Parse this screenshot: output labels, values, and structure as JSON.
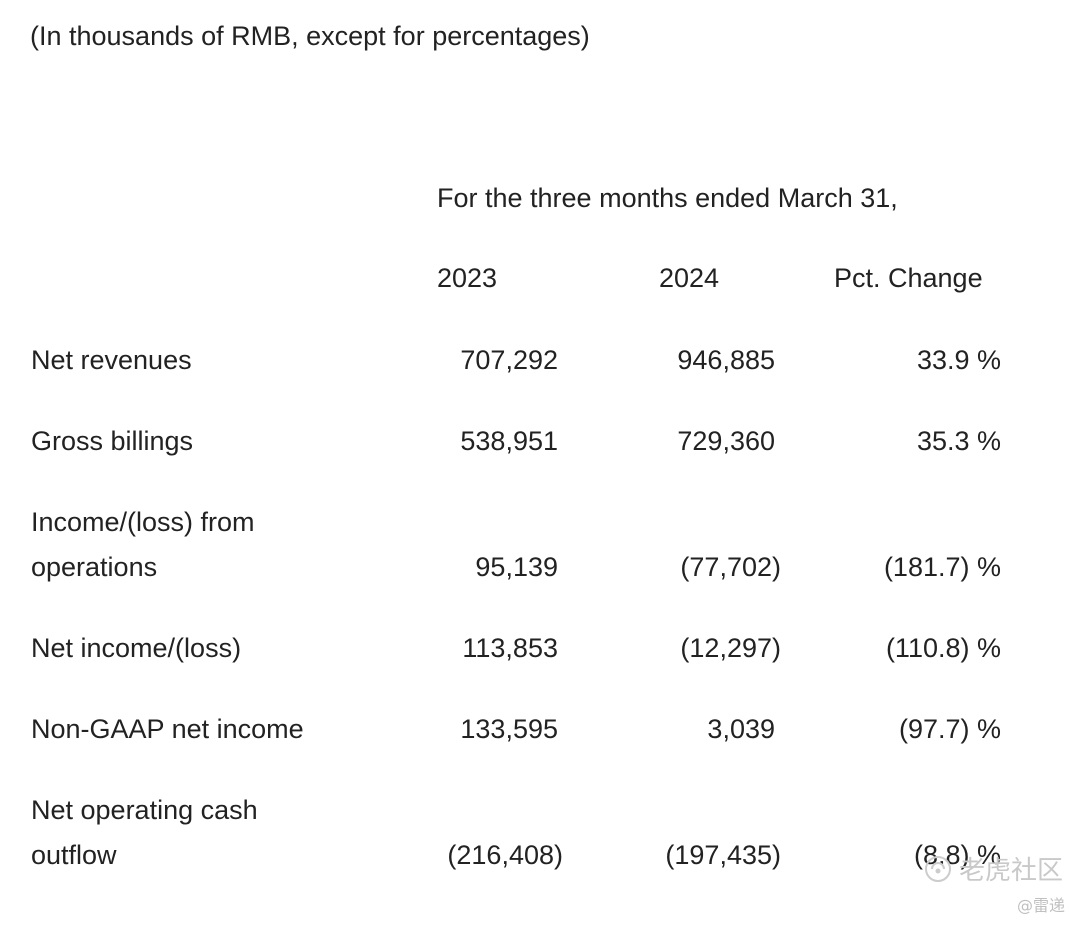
{
  "units_note": "(In thousands of RMB, except for percentages)",
  "period_header": "For the three months ended March 31,",
  "columns": {
    "y2023": "2023",
    "y2024": "2024",
    "pct": "Pct. Change"
  },
  "rows": [
    {
      "label": [
        "Net revenues"
      ],
      "y2023": "707,292",
      "y2024": "946,885",
      "pct": "33.9 %"
    },
    {
      "label": [
        "Gross billings"
      ],
      "y2023": "538,951",
      "y2024": "729,360",
      "pct": "35.3 %"
    },
    {
      "label": [
        "Income/(loss) from",
        "operations"
      ],
      "y2023": "95,139",
      "y2024": "(77,702)",
      "pct": "(181.7) %"
    },
    {
      "label": [
        "Net income/(loss)"
      ],
      "y2023": "113,853",
      "y2024": "(12,297)",
      "pct": "(110.8) %"
    },
    {
      "label": [
        "Non-GAAP net income"
      ],
      "y2023": "133,595",
      "y2024": "3,039",
      "pct": "(97.7) %"
    },
    {
      "label": [
        "Net operating cash",
        "outflow"
      ],
      "y2023": "(216,408)",
      "y2024": "(197,435)",
      "pct": "(8.8) %"
    }
  ],
  "watermark": {
    "brand": "老虎社区",
    "author": "@雷递"
  }
}
